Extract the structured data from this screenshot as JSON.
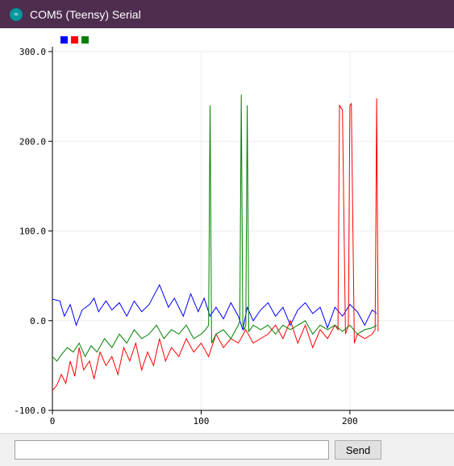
{
  "window": {
    "title": "COM5 (Teensy) Serial",
    "icon": "arduino-infinity-icon",
    "icon_glyph": "∞",
    "titlebar_color": "#4e2d4e"
  },
  "bottom_bar": {
    "input_value": "",
    "input_placeholder": "",
    "send_label": "Send"
  },
  "chart_data": {
    "type": "line",
    "title": "",
    "xlabel": "",
    "ylabel": "",
    "xlim": [
      0,
      270
    ],
    "ylim": [
      -100,
      300
    ],
    "x_ticks": [
      0,
      100,
      200
    ],
    "x_tick_labels": [
      "0",
      "100",
      "200"
    ],
    "y_ticks": [
      300,
      200,
      100,
      0,
      -100
    ],
    "y_tick_labels": [
      "300.0",
      "200.0",
      "100.0",
      "0.0",
      "-100.0"
    ],
    "grid": true,
    "legend": "top-left",
    "series": [
      {
        "color": "#0000ff",
        "x": [
          0,
          5,
          8,
          12,
          16,
          20,
          25,
          28,
          31,
          36,
          40,
          45,
          50,
          55,
          60,
          65,
          72,
          78,
          82,
          88,
          93,
          98,
          102,
          106,
          110,
          115,
          120,
          125,
          128,
          131,
          135,
          140,
          145,
          150,
          155,
          160,
          165,
          170,
          175,
          180,
          185,
          190,
          195,
          200,
          205,
          210,
          215,
          218
        ],
        "y": [
          24,
          22,
          5,
          18,
          -5,
          12,
          18,
          25,
          10,
          22,
          12,
          20,
          5,
          22,
          10,
          18,
          40,
          15,
          25,
          5,
          30,
          10,
          25,
          5,
          15,
          2,
          20,
          5,
          -10,
          15,
          0,
          12,
          20,
          5,
          15,
          -5,
          12,
          20,
          8,
          15,
          -8,
          15,
          5,
          18,
          10,
          -5,
          12,
          8
        ]
      },
      {
        "color": "#ff0000",
        "x": [
          0,
          3,
          6,
          9,
          12,
          15,
          18,
          21,
          25,
          28,
          32,
          36,
          40,
          44,
          48,
          52,
          56,
          60,
          64,
          68,
          72,
          76,
          80,
          85,
          90,
          95,
          100,
          105,
          110,
          115,
          120,
          125,
          130,
          135,
          140,
          145,
          150,
          155,
          160,
          165,
          170,
          175,
          180,
          185,
          190,
          192,
          193,
          195,
          197,
          199,
          200,
          201,
          203,
          205,
          210,
          215,
          217,
          218,
          219
        ],
        "y": [
          -78,
          -72,
          -60,
          -70,
          -45,
          -62,
          -30,
          -55,
          -45,
          -65,
          -35,
          -50,
          -40,
          -60,
          -30,
          -45,
          -25,
          -55,
          -35,
          -50,
          -20,
          -45,
          -30,
          -40,
          -20,
          -35,
          -25,
          -40,
          -15,
          -30,
          -20,
          -25,
          -10,
          -25,
          -20,
          -15,
          -5,
          -20,
          0,
          -25,
          -5,
          -30,
          -10,
          -20,
          -5,
          -10,
          240,
          235,
          -15,
          -5,
          240,
          242,
          -25,
          -15,
          -20,
          -15,
          -10,
          248,
          -12
        ]
      },
      {
        "color": "#008000",
        "x": [
          0,
          3,
          6,
          10,
          14,
          18,
          22,
          26,
          30,
          35,
          40,
          45,
          50,
          55,
          60,
          65,
          70,
          75,
          80,
          85,
          90,
          95,
          100,
          103,
          105,
          106,
          107,
          110,
          115,
          120,
          125,
          126,
          127,
          128,
          129,
          130,
          131,
          132,
          133,
          135,
          140,
          145,
          150,
          155,
          160,
          165,
          170,
          175,
          180,
          185,
          190,
          195,
          200,
          205,
          210,
          215,
          218
        ],
        "y": [
          -40,
          -45,
          -38,
          -30,
          -35,
          -25,
          -40,
          -28,
          -35,
          -20,
          -30,
          -15,
          -25,
          -10,
          -20,
          -15,
          -5,
          -20,
          -10,
          -15,
          -5,
          -20,
          -15,
          -10,
          -5,
          240,
          -25,
          -15,
          -10,
          -20,
          -5,
          0,
          252,
          -5,
          -10,
          -5,
          240,
          -12,
          -10,
          -5,
          -10,
          -5,
          -15,
          -5,
          -10,
          -5,
          0,
          -15,
          -5,
          -10,
          -5,
          -12,
          -5,
          -15,
          -10,
          -8,
          -5
        ]
      }
    ]
  }
}
